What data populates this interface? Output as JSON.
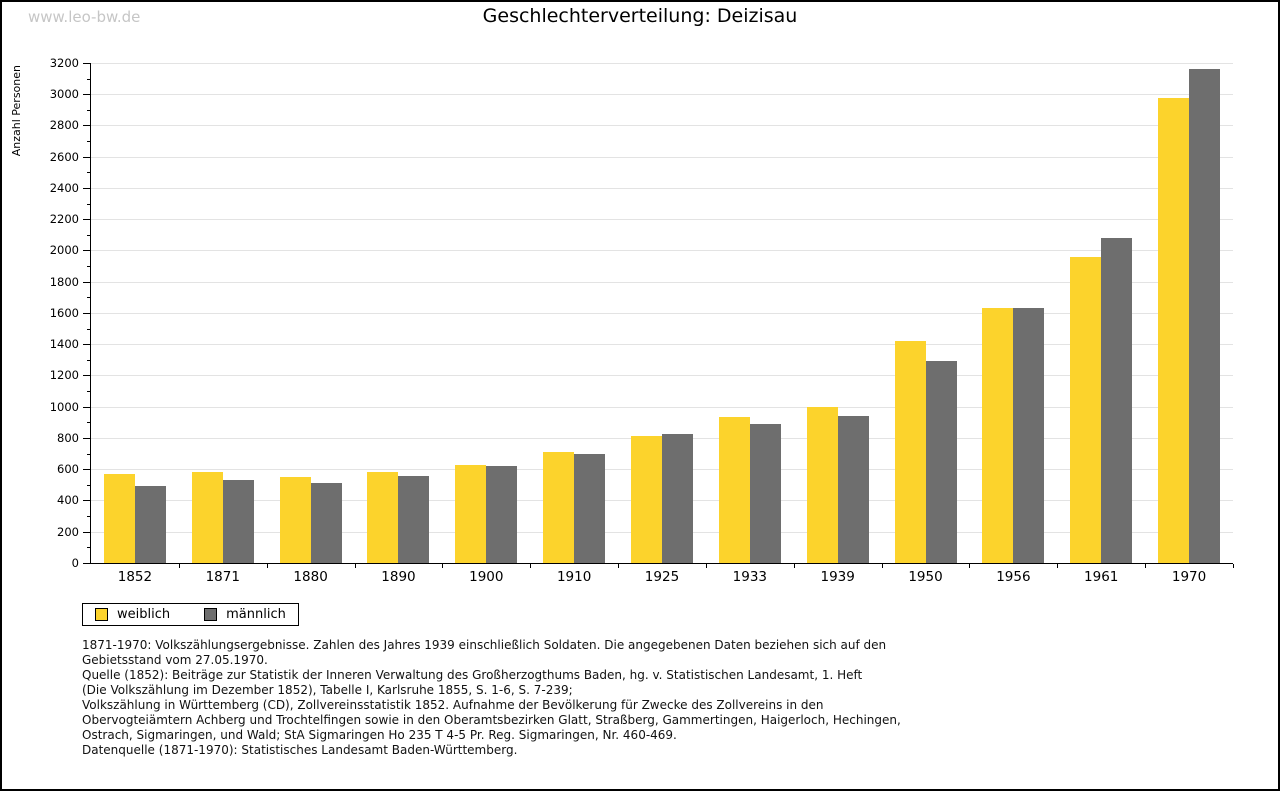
{
  "page": {
    "watermark": "www.leo-bw.de"
  },
  "chart_data": {
    "type": "bar",
    "title": "Geschlechterverteilung: Deizisau",
    "xlabel": "",
    "ylabel": "Anzahl Personen",
    "ylim": [
      0,
      3200
    ],
    "ytick_step": 200,
    "yminor_step": 100,
    "grid": true,
    "legend_position": "bottom-left",
    "gridline_color": "#e3e3e3",
    "categories": [
      "1852",
      "1871",
      "1880",
      "1890",
      "1900",
      "1910",
      "1925",
      "1933",
      "1939",
      "1950",
      "1956",
      "1961",
      "1970"
    ],
    "series": [
      {
        "name": "weiblich",
        "color": "#FCD32C",
        "values": [
          570,
          580,
          550,
          585,
          630,
          710,
          815,
          935,
          1000,
          1420,
          1630,
          1960,
          2975
        ]
      },
      {
        "name": "männlich",
        "color": "#6E6E6E",
        "values": [
          490,
          530,
          515,
          555,
          620,
          700,
          825,
          890,
          940,
          1290,
          1630,
          2080,
          3160
        ]
      }
    ]
  },
  "footnotes": {
    "lines": [
      "1871-1970: Volkszählungsergebnisse. Zahlen des Jahres 1939 einschließlich Soldaten. Die angegebenen Daten beziehen sich auf den",
      "Gebietsstand vom 27.05.1970.",
      "Quelle (1852): Beiträge zur Statistik der Inneren Verwaltung des Großherzogthums Baden, hg. v. Statistischen Landesamt, 1. Heft",
      "(Die Volkszählung im Dezember 1852), Tabelle I, Karlsruhe 1855, S. 1-6, S. 7-239;",
      "Volkszählung in Württemberg (CD), Zollvereinsstatistik 1852. Aufnahme der Bevölkerung für Zwecke des Zollvereins in den",
      "Obervogteiämtern Achberg und Trochtelfingen sowie in den Oberamtsbezirken Glatt, Straßberg, Gammertingen, Haigerloch, Hechingen,",
      "Ostrach, Sigmaringen, und Wald; StA Sigmaringen Ho 235 T 4-5 Pr. Reg. Sigmaringen, Nr. 460-469."
    ],
    "datasource": "Datenquelle (1871-1970): Statistisches Landesamt Baden-Württemberg."
  }
}
